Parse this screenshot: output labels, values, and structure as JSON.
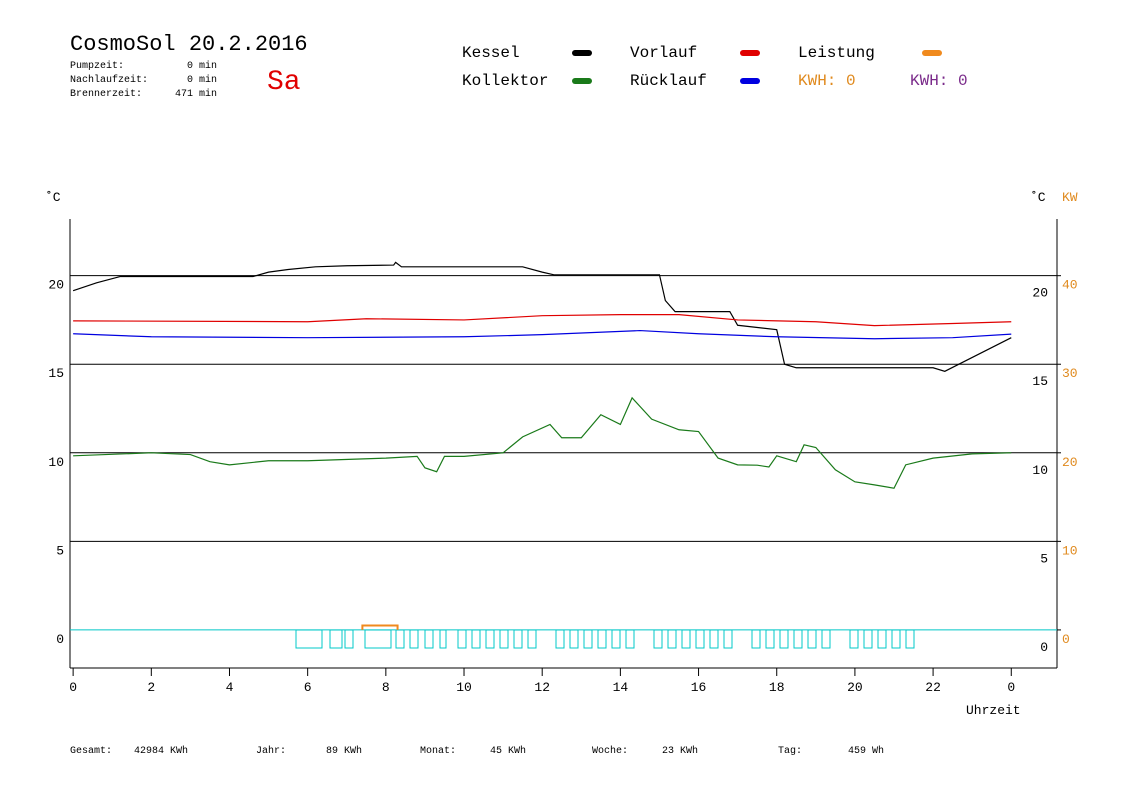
{
  "chart_data": {
    "type": "line",
    "title": "CosmoSol 20.2.2016",
    "day": "Sa",
    "info": [
      [
        "Pumpzeit:",
        "0 min"
      ],
      [
        "Nachlaufzeit:",
        "0 min"
      ],
      [
        "Brennerzeit:",
        "471 min"
      ]
    ],
    "kwh_labels": [
      {
        "text": "KWH: 0",
        "color": "#e08a1e"
      },
      {
        "text": "KWH: 0",
        "color": "#7a2a8a"
      }
    ],
    "y_label": "˚C",
    "y2_label": "KW",
    "x_label": "Uhrzeit",
    "xlim": [
      -0.08,
      25.17
    ],
    "xticks": [
      0,
      2,
      4,
      6,
      8,
      10,
      12,
      14,
      16,
      18,
      20,
      22,
      {
        "value": 24,
        "label": "0"
      }
    ],
    "ylim": [
      -2.15,
      23.2
    ],
    "yticks": [
      0,
      5,
      10,
      15,
      20
    ],
    "y2lim": [
      -4.3,
      46.4
    ],
    "y2ticks": [
      0,
      10,
      20,
      30,
      40
    ],
    "grid": true,
    "series": [
      {
        "name": "Kessel",
        "color": "#000000",
        "x": [
          0,
          0.6,
          1.2,
          4.6,
          5.0,
          5.5,
          6.2,
          7.0,
          8.2,
          8.25,
          8.4,
          11.5,
          12.0,
          12.3,
          15.0,
          15.15,
          15.4,
          16.8,
          17.0,
          18.0,
          18.2,
          18.5,
          22.0,
          22.3,
          24.0
        ],
        "values": [
          19.15,
          19.6,
          19.95,
          19.95,
          20.2,
          20.35,
          20.5,
          20.56,
          20.6,
          20.75,
          20.5,
          20.5,
          20.2,
          20.05,
          20.05,
          18.6,
          17.97,
          17.97,
          17.2,
          16.95,
          15.0,
          14.8,
          14.8,
          14.6,
          16.5
        ]
      },
      {
        "name": "Vorlauf",
        "color": "#e00000",
        "x": [
          0,
          6,
          7.5,
          10,
          12,
          14,
          15.5,
          17,
          19,
          20.5,
          22.5,
          24
        ],
        "values": [
          17.45,
          17.4,
          17.57,
          17.5,
          17.74,
          17.8,
          17.8,
          17.5,
          17.4,
          17.18,
          17.3,
          17.4
        ]
      },
      {
        "name": "Rücklauf",
        "color": "#0000e0",
        "x": [
          0,
          2,
          6,
          10,
          12,
          14.5,
          16,
          18,
          20.5,
          22.5,
          24
        ],
        "values": [
          16.72,
          16.55,
          16.5,
          16.55,
          16.67,
          16.9,
          16.72,
          16.55,
          16.44,
          16.5,
          16.7
        ]
      },
      {
        "name": "Kollektor",
        "color": "#1a7a1a",
        "x": [
          0,
          2,
          3,
          3.5,
          4,
          5,
          6,
          8,
          8.8,
          9.0,
          9.3,
          9.5,
          10,
          11,
          11.5,
          12.2,
          12.5,
          13,
          13.5,
          14,
          14.3,
          14.8,
          15.5,
          16,
          16.5,
          17,
          17.5,
          17.8,
          18,
          18.5,
          18.7,
          19,
          19.5,
          20,
          20.5,
          21,
          21.3,
          22,
          23,
          24
        ],
        "values": [
          9.83,
          10.0,
          9.9,
          9.5,
          9.32,
          9.55,
          9.55,
          9.7,
          9.8,
          9.15,
          8.93,
          9.8,
          9.8,
          10.0,
          10.9,
          11.6,
          10.85,
          10.85,
          12.15,
          11.6,
          13.1,
          11.9,
          11.3,
          11.2,
          9.7,
          9.32,
          9.3,
          9.2,
          9.83,
          9.5,
          10.45,
          10.3,
          9.04,
          8.36,
          8.19,
          8.0,
          9.32,
          9.7,
          9.94,
          10.0
        ]
      },
      {
        "name": "Leistung",
        "color": "#f08a1e",
        "axis": "y2",
        "x": [
          7.4,
          7.4,
          8.3,
          8.3
        ],
        "values": [
          0,
          0.5,
          0.5,
          0
        ]
      }
    ],
    "footer": [
      [
        "Gesamt:",
        "42984 KWh"
      ],
      [
        "Jahr:",
        "89 KWh"
      ],
      [
        "Monat:",
        "45 KWh"
      ],
      [
        "Woche:",
        "23 KWh"
      ],
      [
        "Tag:",
        "459 Wh"
      ]
    ]
  }
}
